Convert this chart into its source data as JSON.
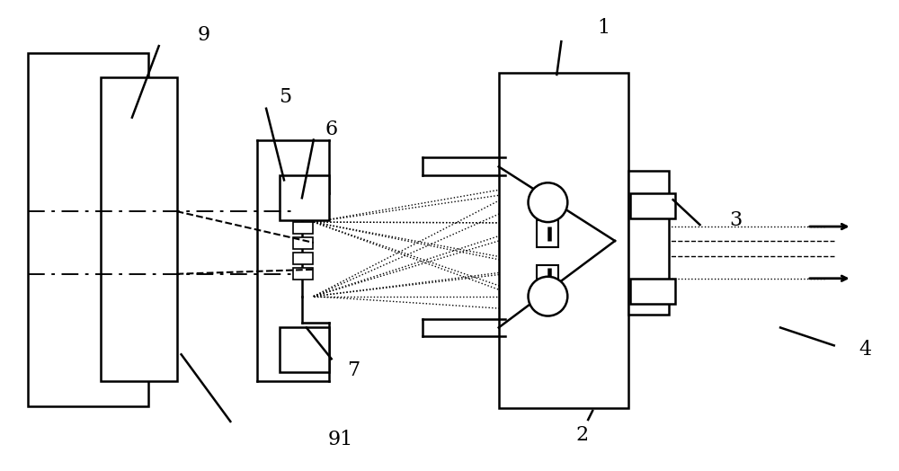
{
  "bg_color": "#ffffff",
  "line_color": "#000000",
  "fig_width": 10.0,
  "fig_height": 5.24,
  "dpi": 100
}
